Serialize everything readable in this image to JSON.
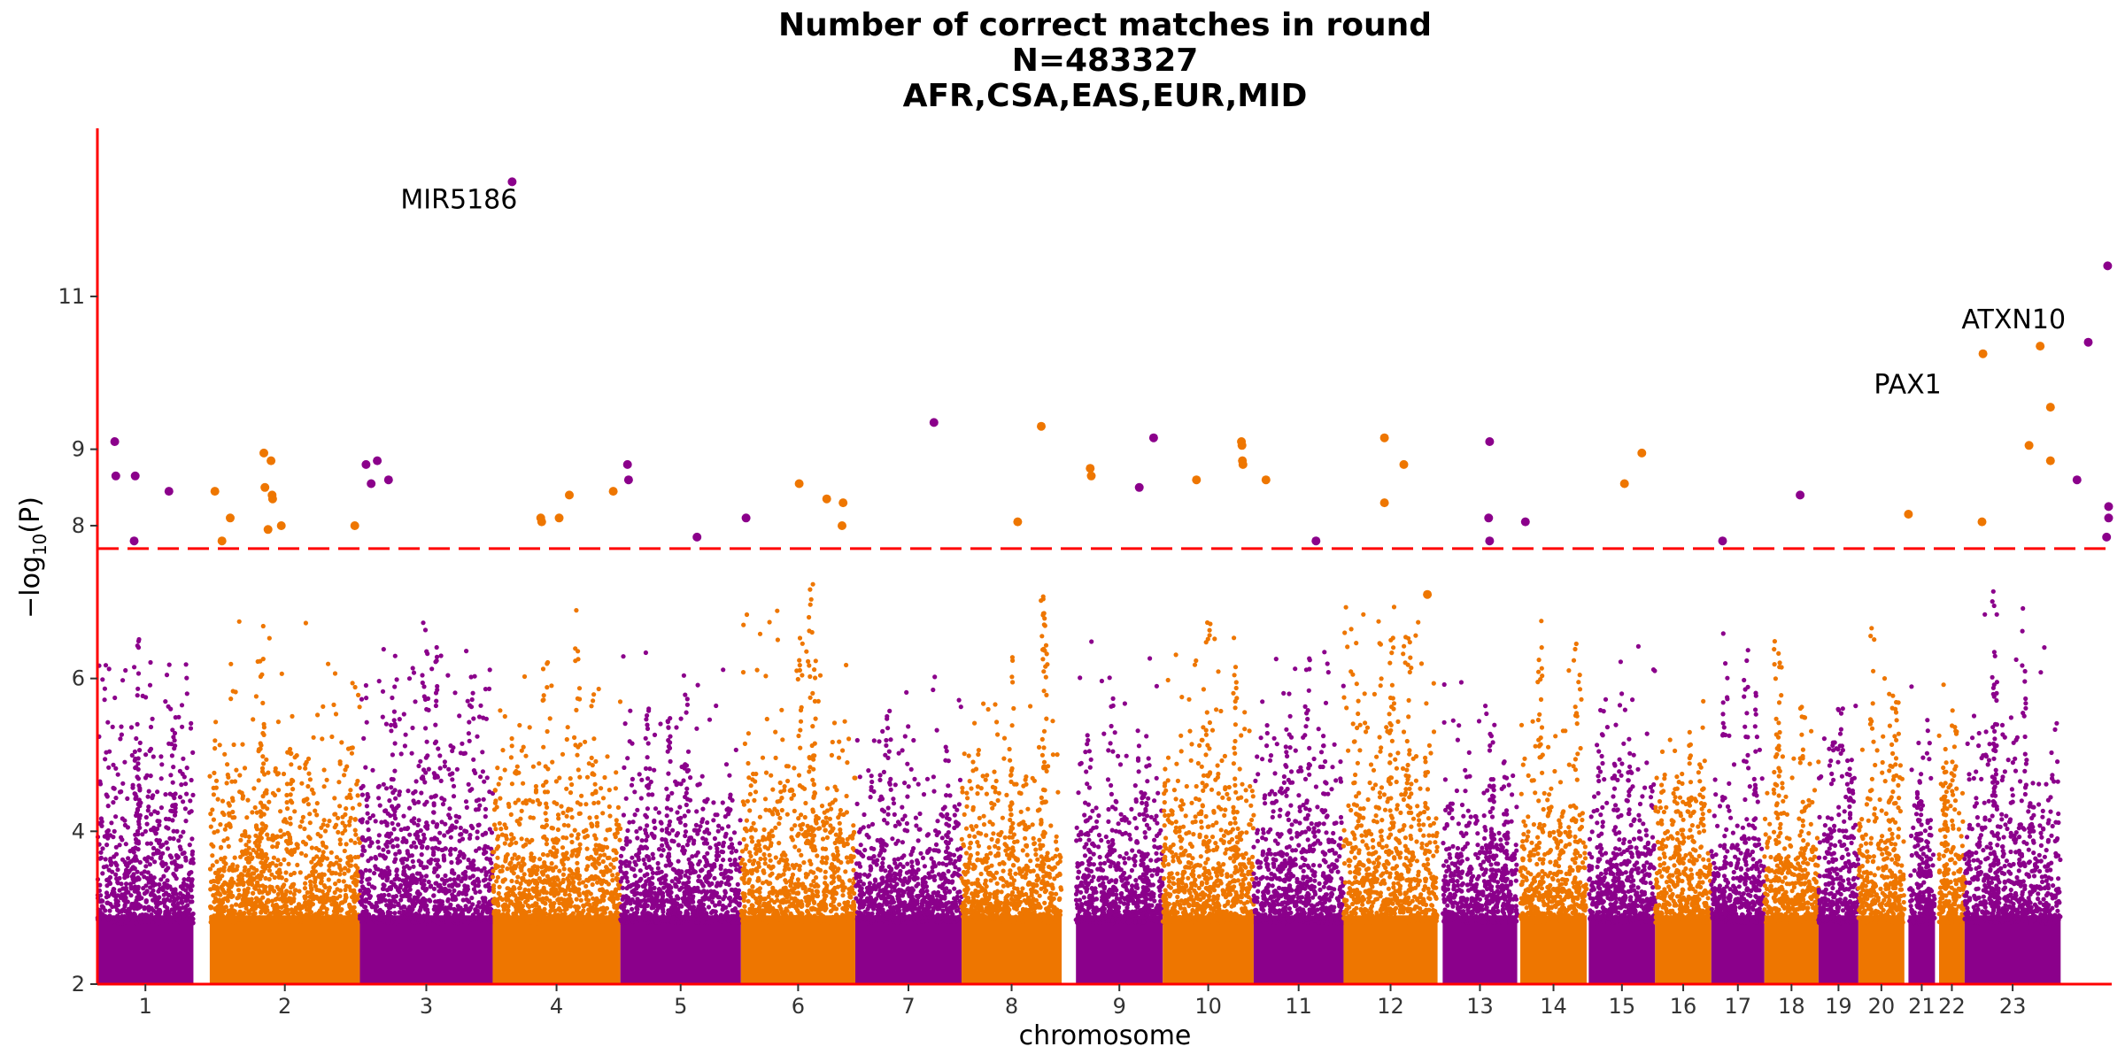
{
  "chart_data": {
    "type": "scatter",
    "subtype": "manhattan",
    "title_lines": [
      "Number of correct matches in round",
      "N=483327",
      "AFR,CSA,EAS,EUR,MID"
    ],
    "xlabel": "chromosome",
    "ylabel_main": "−log",
    "ylabel_sub": "10",
    "ylabel_paren": "(P)",
    "ylim": [
      2,
      13.2
    ],
    "yticks": [
      2,
      4,
      6,
      8,
      9,
      11
    ],
    "significance_threshold": 7.7,
    "grid": false,
    "legend": "none",
    "colors": {
      "odd_chromosome": "#8b008b",
      "even_chromosome": "#ee7600",
      "threshold_line": "#ff0000",
      "axis_line": "#ff0000"
    },
    "chromosomes": [
      {
        "label": "1",
        "start": 0,
        "end": 9.4,
        "body": 4.6,
        "peak": 6.3
      },
      {
        "label": "2",
        "start": 11.0,
        "end": 25.7,
        "body": 4.4,
        "peak": 6.9
      },
      {
        "label": "3",
        "start": 25.7,
        "end": 38.7,
        "body": 4.5,
        "peak": 6.4
      },
      {
        "label": "4",
        "start": 38.7,
        "end": 51.2,
        "body": 4.2,
        "peak": 6.8
      },
      {
        "label": "5",
        "start": 51.2,
        "end": 63.0,
        "body": 4.1,
        "peak": 6.5
      },
      {
        "label": "6",
        "start": 63.0,
        "end": 74.2,
        "body": 4.3,
        "peak": 6.9
      },
      {
        "label": "7",
        "start": 74.2,
        "end": 84.6,
        "body": 4.0,
        "peak": 6.3
      },
      {
        "label": "8",
        "start": 84.6,
        "end": 94.4,
        "body": 4.2,
        "peak": 7.1
      },
      {
        "label": "9",
        "start": 95.8,
        "end": 104.3,
        "body": 4.0,
        "peak": 6.5
      },
      {
        "label": "10",
        "start": 104.3,
        "end": 113.2,
        "body": 4.4,
        "peak": 6.7
      },
      {
        "label": "11",
        "start": 113.2,
        "end": 122.0,
        "body": 4.3,
        "peak": 6.9
      },
      {
        "label": "12",
        "start": 122.0,
        "end": 131.2,
        "body": 4.6,
        "peak": 7.0
      },
      {
        "label": "13",
        "start": 131.7,
        "end": 139.0,
        "body": 4.0,
        "peak": 6.6
      },
      {
        "label": "14",
        "start": 139.3,
        "end": 145.8,
        "body": 4.1,
        "peak": 6.8
      },
      {
        "label": "15",
        "start": 146.0,
        "end": 152.5,
        "body": 4.2,
        "peak": 6.7
      },
      {
        "label": "16",
        "start": 152.5,
        "end": 158.0,
        "body": 4.0,
        "peak": 6.9
      },
      {
        "label": "17",
        "start": 158.0,
        "end": 163.2,
        "body": 4.0,
        "peak": 6.5
      },
      {
        "label": "18",
        "start": 163.2,
        "end": 168.5,
        "body": 3.9,
        "peak": 6.4
      },
      {
        "label": "19",
        "start": 168.5,
        "end": 172.4,
        "body": 3.9,
        "peak": 6.3
      },
      {
        "label": "20",
        "start": 172.4,
        "end": 176.9,
        "body": 4.0,
        "peak": 6.6
      },
      {
        "label": "21",
        "start": 177.3,
        "end": 179.9,
        "body": 3.8,
        "peak": 6.2
      },
      {
        "label": "22",
        "start": 180.3,
        "end": 182.8,
        "body": 3.9,
        "peak": 6.2
      },
      {
        "label": "23",
        "start": 182.8,
        "end": 192.2,
        "body": 4.3,
        "peak": 7.0
      }
    ],
    "top_hits": [
      {
        "chrom": "1",
        "x": 1.7,
        "y": 9.1
      },
      {
        "chrom": "1",
        "x": 1.8,
        "y": 8.65
      },
      {
        "chrom": "1",
        "x": 3.7,
        "y": 8.65
      },
      {
        "chrom": "1",
        "x": 7.0,
        "y": 8.45
      },
      {
        "chrom": "1",
        "x": 3.6,
        "y": 7.8
      },
      {
        "chrom": "2",
        "x": 11.5,
        "y": 8.45
      },
      {
        "chrom": "2",
        "x": 12.2,
        "y": 7.8
      },
      {
        "chrom": "2",
        "x": 13.0,
        "y": 8.1
      },
      {
        "chrom": "2",
        "x": 16.3,
        "y": 8.95
      },
      {
        "chrom": "2",
        "x": 16.4,
        "y": 8.5
      },
      {
        "chrom": "2",
        "x": 17.0,
        "y": 8.85
      },
      {
        "chrom": "2",
        "x": 17.1,
        "y": 8.4
      },
      {
        "chrom": "2",
        "x": 17.15,
        "y": 8.35
      },
      {
        "chrom": "2",
        "x": 16.7,
        "y": 7.95
      },
      {
        "chrom": "2",
        "x": 18.0,
        "y": 8.0
      },
      {
        "chrom": "2",
        "x": 25.2,
        "y": 8.0
      },
      {
        "chrom": "3",
        "x": 26.3,
        "y": 8.8
      },
      {
        "chrom": "3",
        "x": 26.8,
        "y": 8.55
      },
      {
        "chrom": "3",
        "x": 27.4,
        "y": 8.85
      },
      {
        "chrom": "3",
        "x": 28.5,
        "y": 8.6
      },
      {
        "chrom": "3",
        "x": 40.6,
        "y": 12.5
      },
      {
        "chrom": "4",
        "x": 43.4,
        "y": 8.1
      },
      {
        "chrom": "4",
        "x": 43.5,
        "y": 8.05
      },
      {
        "chrom": "4",
        "x": 45.2,
        "y": 8.1
      },
      {
        "chrom": "4",
        "x": 46.2,
        "y": 8.4
      },
      {
        "chrom": "4",
        "x": 50.5,
        "y": 8.45
      },
      {
        "chrom": "5",
        "x": 51.9,
        "y": 8.8
      },
      {
        "chrom": "5",
        "x": 52.0,
        "y": 8.6
      },
      {
        "chrom": "5",
        "x": 58.7,
        "y": 7.85
      },
      {
        "chrom": "5",
        "x": 63.5,
        "y": 8.1
      },
      {
        "chrom": "6",
        "x": 68.7,
        "y": 8.55
      },
      {
        "chrom": "6",
        "x": 71.4,
        "y": 8.35
      },
      {
        "chrom": "6",
        "x": 73.0,
        "y": 8.3
      },
      {
        "chrom": "6",
        "x": 72.9,
        "y": 8.0
      },
      {
        "chrom": "7",
        "x": 81.9,
        "y": 9.35
      },
      {
        "chrom": "8",
        "x": 90.1,
        "y": 8.05
      },
      {
        "chrom": "8",
        "x": 92.4,
        "y": 9.3
      },
      {
        "chrom": "8",
        "x": 97.2,
        "y": 8.75
      },
      {
        "chrom": "8",
        "x": 97.3,
        "y": 8.65
      },
      {
        "chrom": "9",
        "x": 102.0,
        "y": 8.5
      },
      {
        "chrom": "9",
        "x": 103.4,
        "y": 9.15
      },
      {
        "chrom": "10",
        "x": 107.6,
        "y": 8.6
      },
      {
        "chrom": "10",
        "x": 112.0,
        "y": 9.1
      },
      {
        "chrom": "10",
        "x": 112.05,
        "y": 9.05
      },
      {
        "chrom": "10",
        "x": 112.1,
        "y": 8.85
      },
      {
        "chrom": "10",
        "x": 112.15,
        "y": 8.8
      },
      {
        "chrom": "10",
        "x": 114.4,
        "y": 8.6
      },
      {
        "chrom": "11",
        "x": 119.3,
        "y": 7.8
      },
      {
        "chrom": "12",
        "x": 126.0,
        "y": 9.15
      },
      {
        "chrom": "12",
        "x": 126.0,
        "y": 8.3
      },
      {
        "chrom": "12",
        "x": 127.9,
        "y": 8.8
      },
      {
        "chrom": "12",
        "x": 130.2,
        "y": 7.1
      },
      {
        "chrom": "13",
        "x": 136.3,
        "y": 9.1
      },
      {
        "chrom": "13",
        "x": 136.2,
        "y": 8.1
      },
      {
        "chrom": "13",
        "x": 136.3,
        "y": 7.8
      },
      {
        "chrom": "13",
        "x": 139.8,
        "y": 8.05
      },
      {
        "chrom": "14",
        "x": 149.5,
        "y": 8.55
      },
      {
        "chrom": "14",
        "x": 151.2,
        "y": 8.95
      },
      {
        "chrom": "15",
        "x": 159.1,
        "y": 7.8
      },
      {
        "chrom": "17",
        "x": 166.7,
        "y": 8.4
      },
      {
        "chrom": "18",
        "x": 177.3,
        "y": 8.15
      },
      {
        "chrom": "20",
        "x": 184.5,
        "y": 8.05
      },
      {
        "chrom": "20",
        "x": 184.6,
        "y": 10.25
      },
      {
        "chrom": "22",
        "x": 189.1,
        "y": 9.05
      },
      {
        "chrom": "22",
        "x": 190.2,
        "y": 10.35
      },
      {
        "chrom": "22",
        "x": 191.2,
        "y": 9.55
      },
      {
        "chrom": "22",
        "x": 191.2,
        "y": 8.85
      },
      {
        "chrom": "23",
        "x": 193.8,
        "y": 8.6
      },
      {
        "chrom": "23",
        "x": 194.9,
        "y": 10.4
      },
      {
        "chrom": "23",
        "x": 196.8,
        "y": 11.4
      },
      {
        "chrom": "23",
        "x": 196.9,
        "y": 8.25
      },
      {
        "chrom": "23",
        "x": 196.9,
        "y": 8.1
      },
      {
        "chrom": "23",
        "x": 196.7,
        "y": 7.85
      }
    ],
    "annotations": [
      {
        "text": "MIR5186",
        "x": 40.6,
        "y": 12.5,
        "dx": -60,
        "dy": 30
      },
      {
        "text": "PAX1",
        "x": 184.6,
        "y": 10.25,
        "dx": -85,
        "dy": 45
      },
      {
        "text": "ATXN10",
        "x": 190.2,
        "y": 10.35,
        "dx": -30,
        "dy": -20
      }
    ]
  }
}
